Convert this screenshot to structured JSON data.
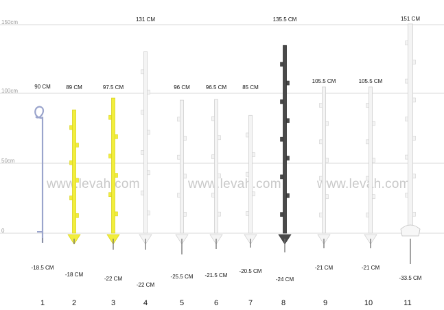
{
  "scale_labels": {
    "s150": "150cm",
    "s100": "100cm",
    "s50": "50cm",
    "s0": "0"
  },
  "watermark": "www.levah.com",
  "posts": [
    {
      "number": "1",
      "height_label": "90 CM",
      "spike_label": "-18.5 CM",
      "color": "#9aa4cc",
      "style": "pigtail"
    },
    {
      "number": "2",
      "height_label": "89 CM",
      "spike_label": "-18 CM",
      "color": "#f2ee3c",
      "style": "plastic"
    },
    {
      "number": "3",
      "height_label": "97.5 CM",
      "spike_label": "-22 CM",
      "color": "#f2ee3c",
      "style": "plastic"
    },
    {
      "number": "4",
      "height_label": "131 CM",
      "spike_label": "-22 CM",
      "color": "#f4f4f4",
      "style": "plastic"
    },
    {
      "number": "5",
      "height_label": "96 CM",
      "spike_label": "-25.5 CM",
      "color": "#f4f4f4",
      "style": "plastic"
    },
    {
      "number": "6",
      "height_label": "96.5 CM",
      "spike_label": "-21.5 CM",
      "color": "#f4f4f4",
      "style": "plastic"
    },
    {
      "number": "7",
      "height_label": "85 CM",
      "spike_label": "-20.5 CM",
      "color": "#f4f4f4",
      "style": "plastic"
    },
    {
      "number": "8",
      "height_label": "135.5 CM",
      "spike_label": "-24 CM",
      "color": "#4a4a4a",
      "style": "plastic"
    },
    {
      "number": "9",
      "height_label": "105.5 CM",
      "spike_label": "-21 CM",
      "color": "#f4f4f4",
      "style": "plastic"
    },
    {
      "number": "10",
      "height_label": "105.5 CM",
      "spike_label": "-21 CM",
      "color": "#f4f4f4",
      "style": "plastic"
    },
    {
      "number": "11",
      "height_label": "151 CM",
      "spike_label": "-33.5 CM",
      "color": "#f4f4f4",
      "style": "tall"
    }
  ]
}
